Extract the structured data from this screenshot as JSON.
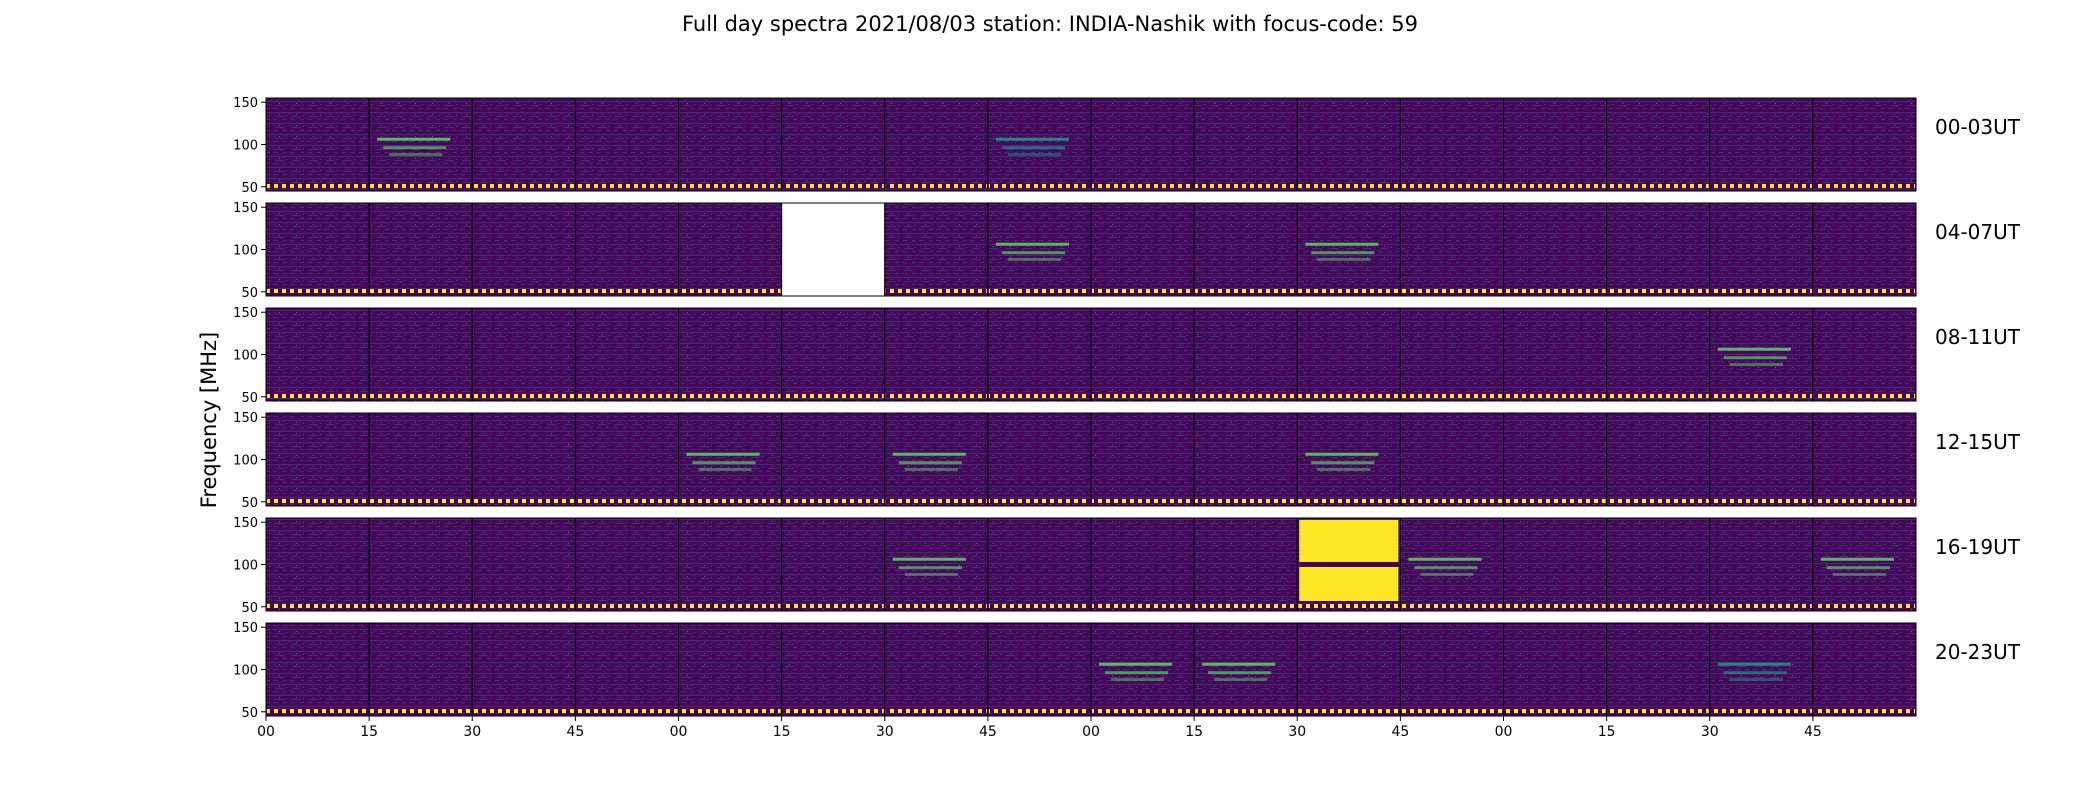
{
  "chart_data": {
    "type": "heatmap",
    "title": "Full day spectra 2021/08/03 station: INDIA-Nashik with focus-code: 59",
    "ylabel": "Frequency [MHz]",
    "xlabel": "",
    "y_ticks": [
      "150",
      "100",
      "50"
    ],
    "ylim": [
      45,
      155
    ],
    "x_ticks": [
      "00",
      "15",
      "30",
      "45",
      "00",
      "15",
      "30",
      "45",
      "00",
      "15",
      "30",
      "45",
      "00",
      "15",
      "30",
      "45"
    ],
    "rows": [
      "00-03UT",
      "04-07UT",
      "08-11UT",
      "12-15UT",
      "16-19UT",
      "20-23UT"
    ],
    "panels_per_row": 16,
    "panel_duration_minutes": 15,
    "colormap": [
      "#440154",
      "#3b528b",
      "#21918c",
      "#5ec962",
      "#fde725"
    ],
    "missing_panels": [
      {
        "row": "04-07UT",
        "panel": 6
      }
    ],
    "bright_events": [
      {
        "row": "00-03UT",
        "panel": 2,
        "intensity": "high"
      },
      {
        "row": "00-03UT",
        "panel": 8,
        "intensity": "medium"
      },
      {
        "row": "04-07UT",
        "panel": 8,
        "intensity": "high"
      },
      {
        "row": "04-07UT",
        "panel": 11,
        "intensity": "high"
      },
      {
        "row": "08-11UT",
        "panel": 15,
        "intensity": "high"
      },
      {
        "row": "12-15UT",
        "panel": 5,
        "intensity": "high"
      },
      {
        "row": "12-15UT",
        "panel": 7,
        "intensity": "high"
      },
      {
        "row": "12-15UT",
        "panel": 11,
        "intensity": "high"
      },
      {
        "row": "16-19UT",
        "panel": 7,
        "intensity": "high"
      },
      {
        "row": "16-19UT",
        "panel": 11,
        "intensity": "saturated"
      },
      {
        "row": "16-19UT",
        "panel": 12,
        "intensity": "high"
      },
      {
        "row": "16-19UT",
        "panel": 16,
        "intensity": "high"
      },
      {
        "row": "20-23UT",
        "panel": 9,
        "intensity": "high"
      },
      {
        "row": "20-23UT",
        "panel": 10,
        "intensity": "high"
      },
      {
        "row": "20-23UT",
        "panel": 15,
        "intensity": "medium"
      }
    ]
  }
}
